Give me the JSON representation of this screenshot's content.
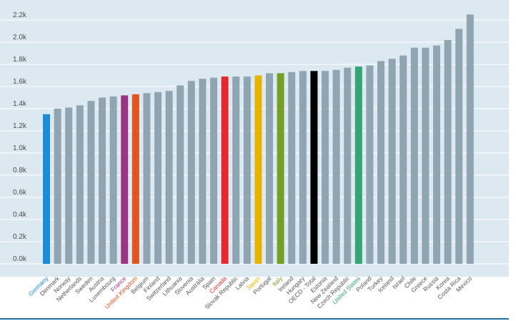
{
  "chart_data": {
    "type": "bar",
    "title": "",
    "xlabel": "",
    "ylabel": "",
    "ylim": [
      0,
      2.3
    ],
    "y_unit_suffix": "k",
    "grid": true,
    "legend": "none",
    "y_ticks": [
      "0.0k",
      "0.2k",
      "0.4k",
      "0.6k",
      "0.8k",
      "1.0k",
      "1.2k",
      "1.4k",
      "1.6k",
      "1.8k",
      "2.0k",
      "2.2k"
    ],
    "y_tick_values": [
      0,
      0.2,
      0.4,
      0.6,
      0.8,
      1.0,
      1.2,
      1.4,
      1.6,
      1.8,
      2.0,
      2.2
    ],
    "categories": [
      "Germany",
      "Denmark",
      "Norway",
      "Netherlands",
      "Sweden",
      "Austria",
      "Luxembourg",
      "France",
      "United Kingdom",
      "Belgium",
      "Finland",
      "Switzerland",
      "Lithuania",
      "Slovenia",
      "Australia",
      "Spain",
      "Canada",
      "Slovak Republic",
      "Latvia",
      "Japan",
      "Portugal",
      "Italy",
      "Ireland",
      "Hungary",
      "OECD - Total",
      "Estonia",
      "New Zealand",
      "Czech Republic",
      "United States",
      "Poland",
      "Turkey",
      "Iceland",
      "Israel",
      "Chile",
      "Greece",
      "Russia",
      "Korea",
      "Costa Rica",
      "Mexico"
    ],
    "values": [
      1.35,
      1.4,
      1.41,
      1.43,
      1.47,
      1.5,
      1.51,
      1.52,
      1.53,
      1.54,
      1.55,
      1.56,
      1.61,
      1.65,
      1.67,
      1.68,
      1.69,
      1.69,
      1.69,
      1.7,
      1.72,
      1.72,
      1.73,
      1.74,
      1.74,
      1.74,
      1.75,
      1.77,
      1.78,
      1.79,
      1.83,
      1.85,
      1.88,
      1.95,
      1.95,
      1.97,
      2.02,
      2.12,
      2.25
    ],
    "highlight_colors": {
      "Germany": "#1a8cd8",
      "France": "#9b3484",
      "United Kingdom": "#e2541e",
      "Canada": "#e52a2f",
      "Japan": "#e6b400",
      "Italy": "#739f27",
      "OECD - Total": "#000000",
      "United States": "#33a474"
    },
    "default_bar_color": "#8fa5b2",
    "default_label_color": "#555555"
  },
  "colors": {
    "plot_background": "#dde9f1",
    "gridline": "#ffffff",
    "bottom_rule": "#1f6fa6"
  }
}
